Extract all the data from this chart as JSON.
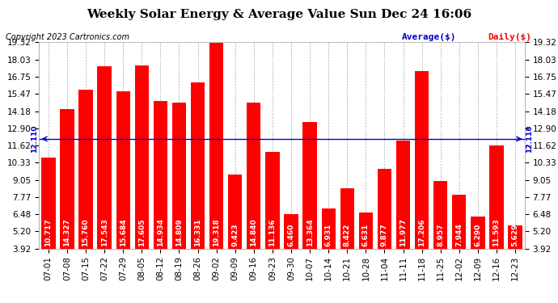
{
  "title": "Weekly Solar Energy & Average Value Sun Dec 24 16:06",
  "copyright": "Copyright 2023 Cartronics.com",
  "legend_avg": "Average($)",
  "legend_daily": "Daily($)",
  "average_value": 12.11,
  "categories": [
    "07-01",
    "07-08",
    "07-15",
    "07-22",
    "07-29",
    "08-05",
    "08-12",
    "08-19",
    "08-26",
    "09-02",
    "09-09",
    "09-16",
    "09-23",
    "09-30",
    "10-07",
    "10-14",
    "10-21",
    "10-28",
    "11-04",
    "11-11",
    "11-18",
    "11-25",
    "12-02",
    "12-09",
    "12-16",
    "12-23"
  ],
  "values": [
    10.717,
    14.327,
    15.76,
    17.543,
    15.684,
    17.605,
    14.934,
    14.809,
    16.331,
    19.318,
    9.423,
    14.84,
    11.136,
    6.46,
    13.364,
    6.931,
    8.422,
    6.631,
    9.877,
    11.977,
    17.206,
    8.957,
    7.944,
    6.29,
    11.593,
    5.629
  ],
  "bar_color": "#ff0000",
  "avg_line_color": "#0000cd",
  "bar_label_color": "#ffffff",
  "y_tick_labels": [
    "3.92",
    "5.20",
    "6.48",
    "7.77",
    "9.05",
    "10.33",
    "11.62",
    "12.90",
    "14.18",
    "15.47",
    "16.75",
    "18.03",
    "19.32"
  ],
  "y_tick_values": [
    3.92,
    5.2,
    6.48,
    7.77,
    9.05,
    10.33,
    11.62,
    12.9,
    14.18,
    15.47,
    16.75,
    18.03,
    19.32
  ],
  "ymin": 3.92,
  "ymax": 19.32,
  "background_color": "#ffffff",
  "grid_color": "#aaaaaa",
  "title_fontsize": 11,
  "copyright_fontsize": 7,
  "bar_label_fontsize": 6.5,
  "axis_tick_fontsize": 7.5,
  "avg_label": "12.110"
}
